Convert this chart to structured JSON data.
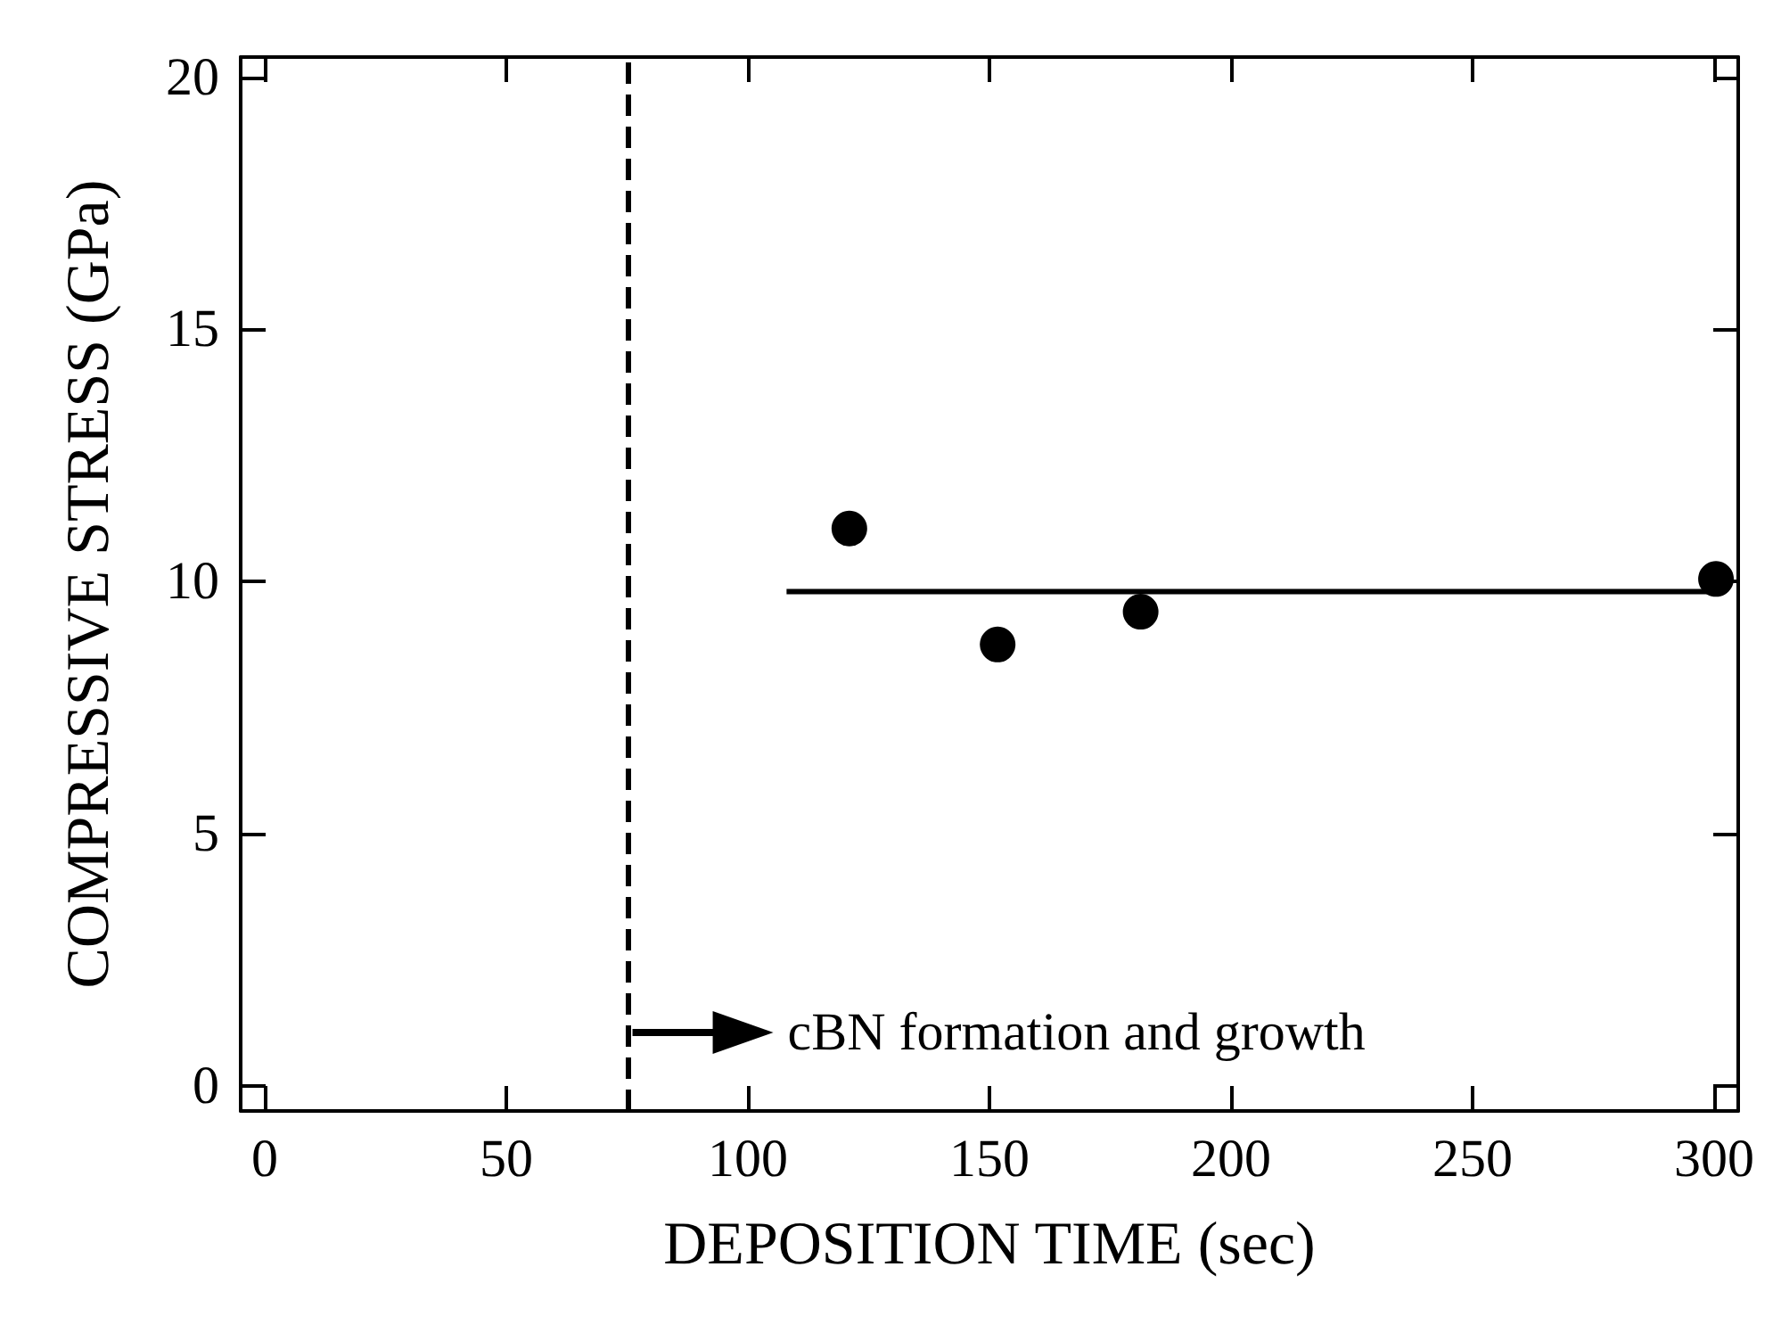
{
  "chart_data": {
    "type": "scatter",
    "xlabel": "DEPOSITION TIME (sec)",
    "ylabel": "COMPRESSIVE STRESS (GPa)",
    "series": [
      {
        "color": "#000000",
        "x": [
          121,
          151.7,
          181.3,
          300.4
        ],
        "values": [
          11.05,
          8.75,
          9.4,
          10.05
        ],
        "marker": "circle"
      },
      {
        "type": "line",
        "color": "#000000",
        "x": [
          108,
          300
        ],
        "values": [
          9.8,
          9.8
        ],
        "marker": "none",
        "line_style": "solid"
      }
    ],
    "xlim": [
      -5,
      305
    ],
    "xticks": [
      0,
      50,
      100,
      150,
      200,
      250,
      300
    ],
    "ylim": [
      -0.5,
      20.4
    ],
    "yticks": [
      0,
      5,
      10,
      15,
      20
    ],
    "ref_lines": [
      {
        "axis": "x",
        "value": 75,
        "color": "#000000",
        "line_style": "dashed"
      }
    ],
    "annotations": [
      "cBN formation and growth"
    ],
    "grid": false
  }
}
